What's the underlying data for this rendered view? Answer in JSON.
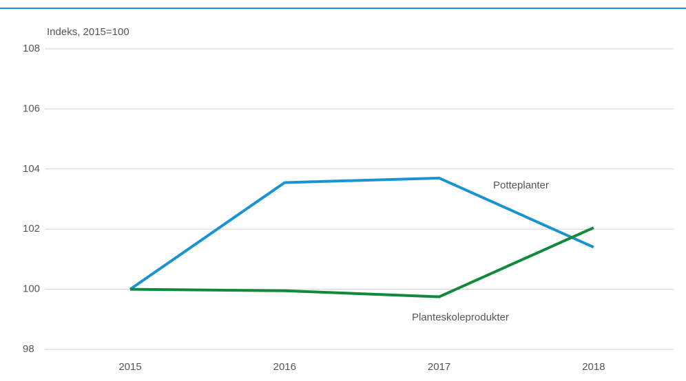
{
  "chart_data": {
    "type": "line",
    "y_axis_label": "Indeks, 2015=100",
    "categories": [
      "2015",
      "2016",
      "2017",
      "2018"
    ],
    "series": [
      {
        "name": "Potteplanter",
        "color": "#1a93d2",
        "values": [
          100,
          103.55,
          103.7,
          101.4
        ]
      },
      {
        "name": "Planteskoleprodukter",
        "color": "#108a3a",
        "values": [
          100,
          99.95,
          99.75,
          102.05
        ]
      }
    ],
    "ylim": [
      98,
      108
    ],
    "yticks": [
      98,
      100,
      102,
      104,
      106,
      108
    ],
    "baseline": 100,
    "grid": true
  }
}
